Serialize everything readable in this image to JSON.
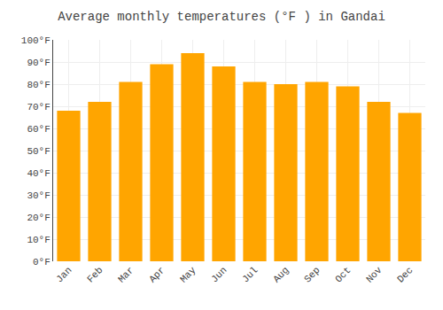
{
  "chart_data": {
    "type": "bar",
    "title": "Average monthly temperatures (°F ) in Gandai",
    "categories": [
      "Jan",
      "Feb",
      "Mar",
      "Apr",
      "May",
      "Jun",
      "Jul",
      "Aug",
      "Sep",
      "Oct",
      "Nov",
      "Dec"
    ],
    "values": [
      68,
      72,
      81,
      89,
      94,
      88,
      81,
      80,
      81,
      79,
      72,
      67
    ],
    "color": "#FFA500",
    "ylim": [
      0,
      100
    ],
    "yticks": [
      {
        "value": 0,
        "label": "0°F"
      },
      {
        "value": 10,
        "label": "10°F"
      },
      {
        "value": 20,
        "label": "20°F"
      },
      {
        "value": 30,
        "label": "30°F"
      },
      {
        "value": 40,
        "label": "40°F"
      },
      {
        "value": 50,
        "label": "50°F"
      },
      {
        "value": 60,
        "label": "60°F"
      },
      {
        "value": 70,
        "label": "70°F"
      },
      {
        "value": 80,
        "label": "80°F"
      },
      {
        "value": 90,
        "label": "90°F"
      },
      {
        "value": 100,
        "label": "100°F"
      }
    ],
    "grid": true
  }
}
